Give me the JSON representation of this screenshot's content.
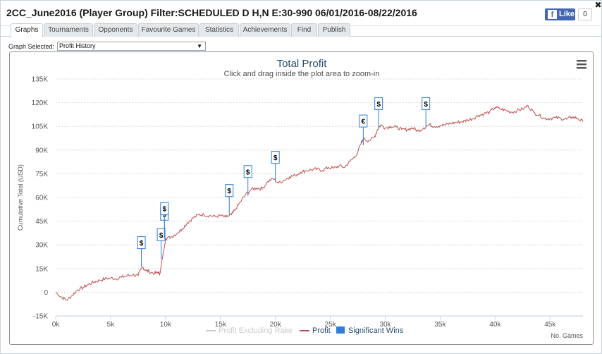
{
  "window": {
    "title": "2CC_June2016 (Player Group) Filter:SCHEDULED D H,N E:30-990 06/01/2016-08/22/2016",
    "fb_like_label": "Like",
    "fb_like_count": "0",
    "close_icon": "close-icon"
  },
  "tabs": [
    {
      "label": "Graphs",
      "active": true
    },
    {
      "label": "Tournaments",
      "active": false
    },
    {
      "label": "Opponents",
      "active": false
    },
    {
      "label": "Favourite Games",
      "active": false
    },
    {
      "label": "Statistics",
      "active": false
    },
    {
      "label": "Achievements",
      "active": false
    },
    {
      "label": "Find",
      "active": false
    },
    {
      "label": "Publish",
      "active": false
    }
  ],
  "graph_select": {
    "label": "Graph Selected:",
    "value": "Profit History"
  },
  "chart_menu_icon": "hamburger-menu-icon",
  "chart_data": {
    "type": "line",
    "title": "Total Profit",
    "subtitle": "Click and drag inside the plot area to zoom-in",
    "xlabel": "No. Games",
    "ylabel": "Cumulative Total (USD)",
    "xlim": [
      0,
      48000
    ],
    "ylim": [
      -15000,
      135000
    ],
    "x_ticks": [
      0,
      5000,
      10000,
      15000,
      20000,
      25000,
      30000,
      35000,
      40000,
      45000
    ],
    "x_tick_labels": [
      "0k",
      "5k",
      "10k",
      "15k",
      "20k",
      "25k",
      "30k",
      "35k",
      "40k",
      "45k"
    ],
    "y_ticks": [
      -15000,
      0,
      15000,
      30000,
      45000,
      60000,
      75000,
      90000,
      105000,
      120000,
      135000
    ],
    "y_tick_labels": [
      "-15K",
      "0",
      "15K",
      "30K",
      "45K",
      "60K",
      "75K",
      "90K",
      "105K",
      "120K",
      "135K"
    ],
    "grid": true,
    "legend_position": "bottom-center",
    "colors": {
      "profit": "#c0504d",
      "profit_excl_rake": "#cccccc",
      "significant_wins": "#2f7ed8",
      "grid": "#d8d8d8"
    },
    "series": [
      {
        "name": "Profit",
        "x": [
          0,
          500,
          1000,
          1500,
          2000,
          2500,
          3000,
          3500,
          4000,
          4500,
          5000,
          5500,
          6000,
          6500,
          7000,
          7500,
          7900,
          8200,
          8500,
          9000,
          9300,
          9500,
          9700,
          10000,
          10500,
          11000,
          11500,
          12000,
          12500,
          13000,
          13500,
          14000,
          14500,
          15000,
          15500,
          16000,
          16300,
          16800,
          17300,
          17800,
          18300,
          18800,
          19300,
          19800,
          20300,
          20800,
          21300,
          21800,
          22300,
          22800,
          23300,
          23800,
          24300,
          24800,
          25300,
          25800,
          26300,
          26800,
          27300,
          27800,
          28000,
          28500,
          29000,
          29300,
          29600,
          30000,
          30500,
          31000,
          31500,
          32000,
          32500,
          33000,
          33500,
          34000,
          34500,
          35000,
          35500,
          36000,
          36500,
          37000,
          37500,
          38000,
          38500,
          39000,
          39500,
          40000,
          40500,
          41000,
          41500,
          42000,
          42500,
          43000,
          43500,
          44000,
          44500,
          45000,
          45500,
          46000,
          46500,
          47000,
          47500,
          48000
        ],
        "values": [
          0,
          -3000,
          -5000,
          -2000,
          1500,
          3000,
          5000,
          6500,
          7500,
          8500,
          9000,
          8500,
          9500,
          10500,
          11000,
          10500,
          16000,
          14000,
          13000,
          12000,
          12500,
          12000,
          21000,
          34000,
          35000,
          37000,
          40000,
          44000,
          47000,
          49000,
          49000,
          48500,
          48000,
          48500,
          47500,
          49000,
          52000,
          57000,
          62000,
          65000,
          66000,
          65500,
          70000,
          72000,
          69000,
          71000,
          73000,
          74000,
          76000,
          77000,
          77500,
          78000,
          77000,
          79000,
          78500,
          80000,
          79000,
          83000,
          86000,
          94000,
          97000,
          96000,
          98000,
          103000,
          106000,
          104000,
          105000,
          104500,
          103000,
          103000,
          104000,
          102000,
          104000,
          106000,
          105000,
          105500,
          106000,
          107000,
          107500,
          108000,
          109000,
          110000,
          112000,
          113000,
          114000,
          117000,
          116000,
          115000,
          114000,
          115000,
          116000,
          118000,
          114000,
          112000,
          110000,
          110000,
          110500,
          110000,
          109500,
          111000,
          110000,
          108000
        ]
      },
      {
        "name": "Profit Excluding Rake",
        "visible": false,
        "x": [],
        "values": []
      }
    ],
    "significant_wins": [
      {
        "x": 7800,
        "y": 16000,
        "label": "$"
      },
      {
        "x": 9600,
        "y": 21000,
        "label": "$"
      },
      {
        "x": 9900,
        "y": 34000,
        "label": "$"
      },
      {
        "x": 9900,
        "y": 34000,
        "label": "$"
      },
      {
        "x": 15800,
        "y": 49000,
        "label": "$"
      },
      {
        "x": 17500,
        "y": 61000,
        "label": "$"
      },
      {
        "x": 20000,
        "y": 70000,
        "label": "$"
      },
      {
        "x": 28000,
        "y": 93000,
        "label": "€"
      },
      {
        "x": 29400,
        "y": 104000,
        "label": "$"
      },
      {
        "x": 33700,
        "y": 104000,
        "label": "$"
      }
    ],
    "legend": [
      {
        "label": "Profit Excluding Rake",
        "color": "#cccccc",
        "kind": "line"
      },
      {
        "label": "Profit",
        "color": "#c0504d",
        "kind": "line"
      },
      {
        "label": "Significant Wins",
        "color": "#2f7ed8",
        "kind": "box"
      }
    ]
  }
}
